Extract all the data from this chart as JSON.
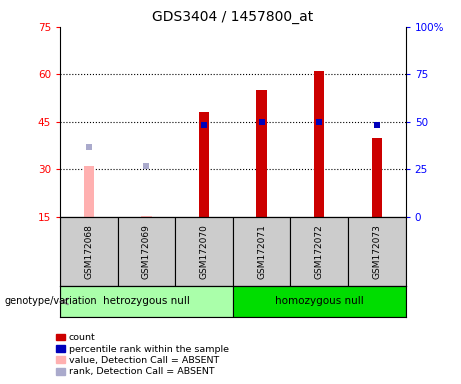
{
  "title": "GDS3404 / 1457800_at",
  "samples": [
    "GSM172068",
    "GSM172069",
    "GSM172070",
    "GSM172071",
    "GSM172072",
    "GSM172073"
  ],
  "count_values": [
    31,
    15.2,
    48,
    55,
    61,
    40
  ],
  "rank_values": [
    37,
    31,
    44,
    45,
    45,
    44
  ],
  "absent_flags": [
    true,
    true,
    false,
    false,
    false,
    false
  ],
  "groups": [
    {
      "label": "hetrozygous null",
      "indices": [
        0,
        1,
        2
      ],
      "color": "#aaffaa"
    },
    {
      "label": "homozygous null",
      "indices": [
        3,
        4,
        5
      ],
      "color": "#00dd00"
    }
  ],
  "ylim_left": [
    15,
    75
  ],
  "ylim_right": [
    0,
    100
  ],
  "yticks_left": [
    15,
    30,
    45,
    60,
    75
  ],
  "yticks_right": [
    0,
    25,
    50,
    75,
    100
  ],
  "ytick_labels_right": [
    "0",
    "25",
    "50",
    "75",
    "100%"
  ],
  "bar_color_present": "#cc0000",
  "bar_color_absent": "#ffb0b0",
  "rank_color_present": "#0000bb",
  "rank_color_absent": "#aaaacc",
  "bar_width": 0.18,
  "rank_marker_size": 5,
  "grid_yticks": [
    30,
    45,
    60
  ],
  "legend_items": [
    {
      "label": "count",
      "color": "#cc0000"
    },
    {
      "label": "percentile rank within the sample",
      "color": "#0000bb"
    },
    {
      "label": "value, Detection Call = ABSENT",
      "color": "#ffb0b0"
    },
    {
      "label": "rank, Detection Call = ABSENT",
      "color": "#aaaacc"
    }
  ]
}
